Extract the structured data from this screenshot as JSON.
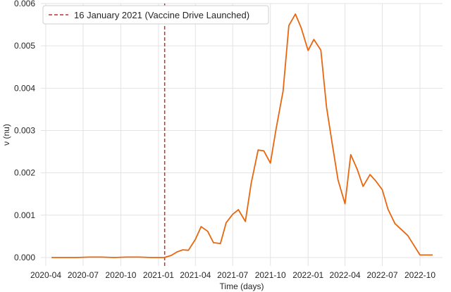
{
  "chart_data": {
    "type": "line",
    "title": "",
    "xlabel": "Time (days)",
    "ylabel": "ν (nu)",
    "xlim": [
      "2020-03-20",
      "2022-11-25"
    ],
    "ylim": [
      -0.0002,
      0.006
    ],
    "grid": true,
    "legend_position": "top-left",
    "x_ticks": [
      "2020-04",
      "2020-07",
      "2020-10",
      "2021-01",
      "2021-04",
      "2021-07",
      "2021-10",
      "2022-01",
      "2022-04",
      "2022-07",
      "2022-10"
    ],
    "y_ticks": [
      "0.000",
      "0.001",
      "0.002",
      "0.003",
      "0.004",
      "0.005",
      "0.006"
    ],
    "series": [
      {
        "color": "#e8660e",
        "x": [
          "2020-04-15",
          "2020-05-15",
          "2020-06-15",
          "2020-07-15",
          "2020-08-15",
          "2020-09-15",
          "2020-10-15",
          "2020-11-15",
          "2020-12-15",
          "2021-01-15",
          "2021-02-01",
          "2021-02-15",
          "2021-03-01",
          "2021-03-15",
          "2021-04-01",
          "2021-04-15",
          "2021-05-01",
          "2021-05-15",
          "2021-06-01",
          "2021-06-15",
          "2021-07-01",
          "2021-07-15",
          "2021-08-01",
          "2021-08-15",
          "2021-09-01",
          "2021-09-15",
          "2021-10-01",
          "2021-10-15",
          "2021-11-01",
          "2021-11-15",
          "2021-12-01",
          "2021-12-15",
          "2022-01-01",
          "2022-01-15",
          "2022-02-01",
          "2022-02-15",
          "2022-03-01",
          "2022-03-15",
          "2022-04-01",
          "2022-04-15",
          "2022-05-01",
          "2022-05-15",
          "2022-06-01",
          "2022-06-15",
          "2022-07-01",
          "2022-07-15",
          "2022-08-01",
          "2022-09-01",
          "2022-10-01",
          "2022-11-01"
        ],
        "y": [
          0.0,
          0.0,
          0.0,
          1e-05,
          1e-05,
          0.0,
          1e-05,
          1e-05,
          0.0,
          0.0,
          5e-05,
          0.00013,
          0.00018,
          0.00017,
          0.00043,
          0.00073,
          0.00062,
          0.00035,
          0.00033,
          0.00082,
          0.00102,
          0.00113,
          0.00085,
          0.00175,
          0.00254,
          0.00252,
          0.00223,
          0.00305,
          0.00393,
          0.00548,
          0.00575,
          0.00543,
          0.00489,
          0.00515,
          0.0049,
          0.00355,
          0.00268,
          0.00183,
          0.00127,
          0.00243,
          0.00208,
          0.00168,
          0.00196,
          0.00181,
          0.0016,
          0.00114,
          0.0008,
          0.00052,
          6e-05,
          6e-05
        ]
      }
    ],
    "annotations": [
      {
        "type": "vline",
        "x": "2021-01-16",
        "color": "#d62728",
        "style": "dashed",
        "label": "16 January 2021 (Vaccine Drive Launched)"
      }
    ]
  }
}
